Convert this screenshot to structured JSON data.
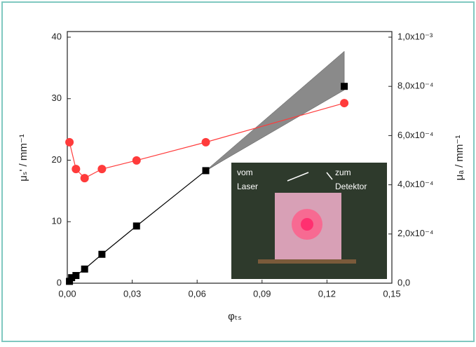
{
  "chart_data": {
    "type": "line",
    "x_label": "φₜₛ",
    "y_label": "μₛ' / mm⁻¹",
    "y2_label": "μₐ / mm⁻¹",
    "xlim": [
      0,
      0.15
    ],
    "xticks": [
      {
        "value": 0,
        "label": "0,00"
      },
      {
        "value": 0.03,
        "label": "0,03"
      },
      {
        "value": 0.06,
        "label": "0,06"
      },
      {
        "value": 0.09,
        "label": "0,09"
      },
      {
        "value": 0.12,
        "label": "0,12"
      },
      {
        "value": 0.15,
        "label": "0,15"
      }
    ],
    "ylim": [
      0,
      40
    ],
    "yticks": [
      0,
      10,
      20,
      30,
      40
    ],
    "y2lim": [
      0,
      0.001
    ],
    "y2ticks": [
      {
        "value": 0,
        "label": "0,0"
      },
      {
        "value": 0.0002,
        "label": "2,0x10⁻⁴"
      },
      {
        "value": 0.0004,
        "label": "4,0x10⁻⁴"
      },
      {
        "value": 0.0006,
        "label": "6,0x10⁻⁴"
      },
      {
        "value": 0.0008,
        "label": "8,0x10⁻⁴"
      },
      {
        "value": 0.001,
        "label": "1,0x10⁻³"
      }
    ],
    "series": [
      {
        "color": "#000000",
        "marker": "square",
        "x": [
          0.001,
          0.002,
          0.004,
          0.008,
          0.016,
          0.032,
          0.064,
          0.128
        ],
        "values": [
          0.3,
          0.9,
          1.25,
          2.3,
          4.7,
          9.3,
          18.3,
          32.0
        ]
      },
      {
        "color": "#ff3b3b",
        "marker": "circle",
        "axis": "y2",
        "x": [
          0.001,
          0.004,
          0.008,
          0.016,
          0.032,
          0.064,
          0.128
        ],
        "values": [
          0.000573,
          0.000464,
          0.000427,
          0.000464,
          0.000499,
          0.000573,
          0.000732
        ]
      }
    ],
    "band": {
      "color": "#8a8a8a",
      "x": [
        0.064,
        0.128
      ],
      "lower": [
        18.3,
        31.4
      ],
      "upper": [
        18.3,
        37.7
      ]
    },
    "inset": {
      "left_top": "vom",
      "left_bottom": "Laser",
      "right_top": "zum",
      "right_bottom": "Detektor"
    }
  }
}
